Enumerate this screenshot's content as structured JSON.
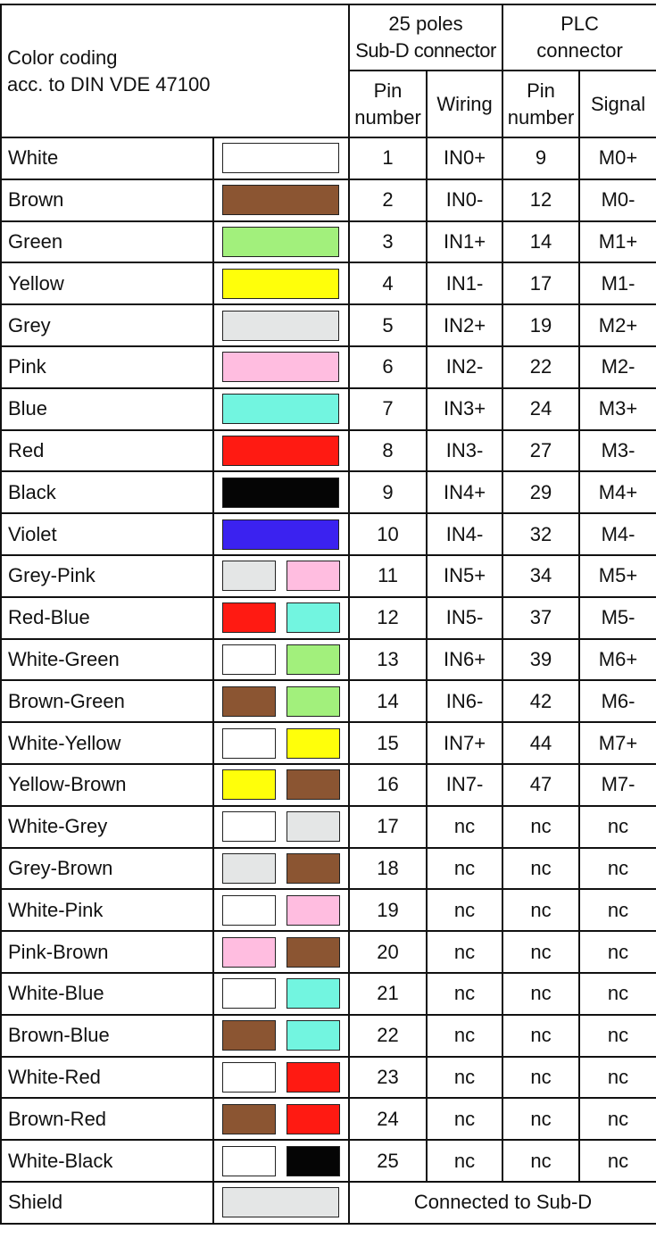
{
  "header": {
    "color_coding_line1": "Color coding",
    "color_coding_line2": "acc. to DIN VDE 47100",
    "subd_line1": "25 poles",
    "subd_line2": "Sub-D connector",
    "plc_line1": "PLC",
    "plc_line2": "connector",
    "pin_number_line1": "Pin",
    "pin_number_line2": "number",
    "wiring": "Wiring",
    "signal": "Signal"
  },
  "colors": {
    "White": "#ffffff",
    "Brown": "#8b5532",
    "Green": "#a2f07c",
    "Yellow": "#ffff0a",
    "Grey": "#e4e6e6",
    "Pink": "#ffbde0",
    "Blue": "#72f5e0",
    "Red": "#ff1a12",
    "Black": "#050505",
    "Violet": "#3b22f0"
  },
  "rows": [
    {
      "name": "White",
      "swatch": [
        "White"
      ],
      "pin": "1",
      "wiring": "IN0+",
      "plc_pin": "9",
      "signal": "M0+"
    },
    {
      "name": "Brown",
      "swatch": [
        "Brown"
      ],
      "pin": "2",
      "wiring": "IN0-",
      "plc_pin": "12",
      "signal": "M0-"
    },
    {
      "name": "Green",
      "swatch": [
        "Green"
      ],
      "pin": "3",
      "wiring": "IN1+",
      "plc_pin": "14",
      "signal": "M1+"
    },
    {
      "name": "Yellow",
      "swatch": [
        "Yellow"
      ],
      "pin": "4",
      "wiring": "IN1-",
      "plc_pin": "17",
      "signal": "M1-"
    },
    {
      "name": "Grey",
      "swatch": [
        "Grey"
      ],
      "pin": "5",
      "wiring": "IN2+",
      "plc_pin": "19",
      "signal": "M2+"
    },
    {
      "name": "Pink",
      "swatch": [
        "Pink"
      ],
      "pin": "6",
      "wiring": "IN2-",
      "plc_pin": "22",
      "signal": "M2-"
    },
    {
      "name": "Blue",
      "swatch": [
        "Blue"
      ],
      "pin": "7",
      "wiring": "IN3+",
      "plc_pin": "24",
      "signal": "M3+"
    },
    {
      "name": "Red",
      "swatch": [
        "Red"
      ],
      "pin": "8",
      "wiring": "IN3-",
      "plc_pin": "27",
      "signal": "M3-"
    },
    {
      "name": "Black",
      "swatch": [
        "Black"
      ],
      "pin": "9",
      "wiring": "IN4+",
      "plc_pin": "29",
      "signal": "M4+"
    },
    {
      "name": "Violet",
      "swatch": [
        "Violet"
      ],
      "pin": "10",
      "wiring": "IN4-",
      "plc_pin": "32",
      "signal": "M4-"
    },
    {
      "name": "Grey-Pink",
      "swatch": [
        "Grey",
        "Pink"
      ],
      "pin": "11",
      "wiring": "IN5+",
      "plc_pin": "34",
      "signal": "M5+"
    },
    {
      "name": "Red-Blue",
      "swatch": [
        "Red",
        "Blue"
      ],
      "pin": "12",
      "wiring": "IN5-",
      "plc_pin": "37",
      "signal": "M5-"
    },
    {
      "name": "White-Green",
      "swatch": [
        "White",
        "Green"
      ],
      "pin": "13",
      "wiring": "IN6+",
      "plc_pin": "39",
      "signal": "M6+"
    },
    {
      "name": "Brown-Green",
      "swatch": [
        "Brown",
        "Green"
      ],
      "pin": "14",
      "wiring": "IN6-",
      "plc_pin": "42",
      "signal": "M6-"
    },
    {
      "name": "White-Yellow",
      "swatch": [
        "White",
        "Yellow"
      ],
      "pin": "15",
      "wiring": "IN7+",
      "plc_pin": "44",
      "signal": "M7+"
    },
    {
      "name": "Yellow-Brown",
      "swatch": [
        "Yellow",
        "Brown"
      ],
      "pin": "16",
      "wiring": "IN7-",
      "plc_pin": "47",
      "signal": "M7-"
    },
    {
      "name": "White-Grey",
      "swatch": [
        "White",
        "Grey"
      ],
      "pin": "17",
      "wiring": "nc",
      "plc_pin": "nc",
      "signal": "nc"
    },
    {
      "name": "Grey-Brown",
      "swatch": [
        "Grey",
        "Brown"
      ],
      "pin": "18",
      "wiring": "nc",
      "plc_pin": "nc",
      "signal": "nc"
    },
    {
      "name": "White-Pink",
      "swatch": [
        "White",
        "Pink"
      ],
      "pin": "19",
      "wiring": "nc",
      "plc_pin": "nc",
      "signal": "nc"
    },
    {
      "name": "Pink-Brown",
      "swatch": [
        "Pink",
        "Brown"
      ],
      "pin": "20",
      "wiring": "nc",
      "plc_pin": "nc",
      "signal": "nc"
    },
    {
      "name": "White-Blue",
      "swatch": [
        "White",
        "Blue"
      ],
      "pin": "21",
      "wiring": "nc",
      "plc_pin": "nc",
      "signal": "nc"
    },
    {
      "name": "Brown-Blue",
      "swatch": [
        "Brown",
        "Blue"
      ],
      "pin": "22",
      "wiring": "nc",
      "plc_pin": "nc",
      "signal": "nc"
    },
    {
      "name": "White-Red",
      "swatch": [
        "White",
        "Red"
      ],
      "pin": "23",
      "wiring": "nc",
      "plc_pin": "nc",
      "signal": "nc"
    },
    {
      "name": "Brown-Red",
      "swatch": [
        "Brown",
        "Red"
      ],
      "pin": "24",
      "wiring": "nc",
      "plc_pin": "nc",
      "signal": "nc"
    },
    {
      "name": "White-Black",
      "swatch": [
        "White",
        "Black"
      ],
      "pin": "25",
      "wiring": "nc",
      "plc_pin": "nc",
      "signal": "nc"
    }
  ],
  "shield": {
    "name": "Shield",
    "swatch": [
      "Grey"
    ],
    "note": "Connected to Sub-D"
  }
}
